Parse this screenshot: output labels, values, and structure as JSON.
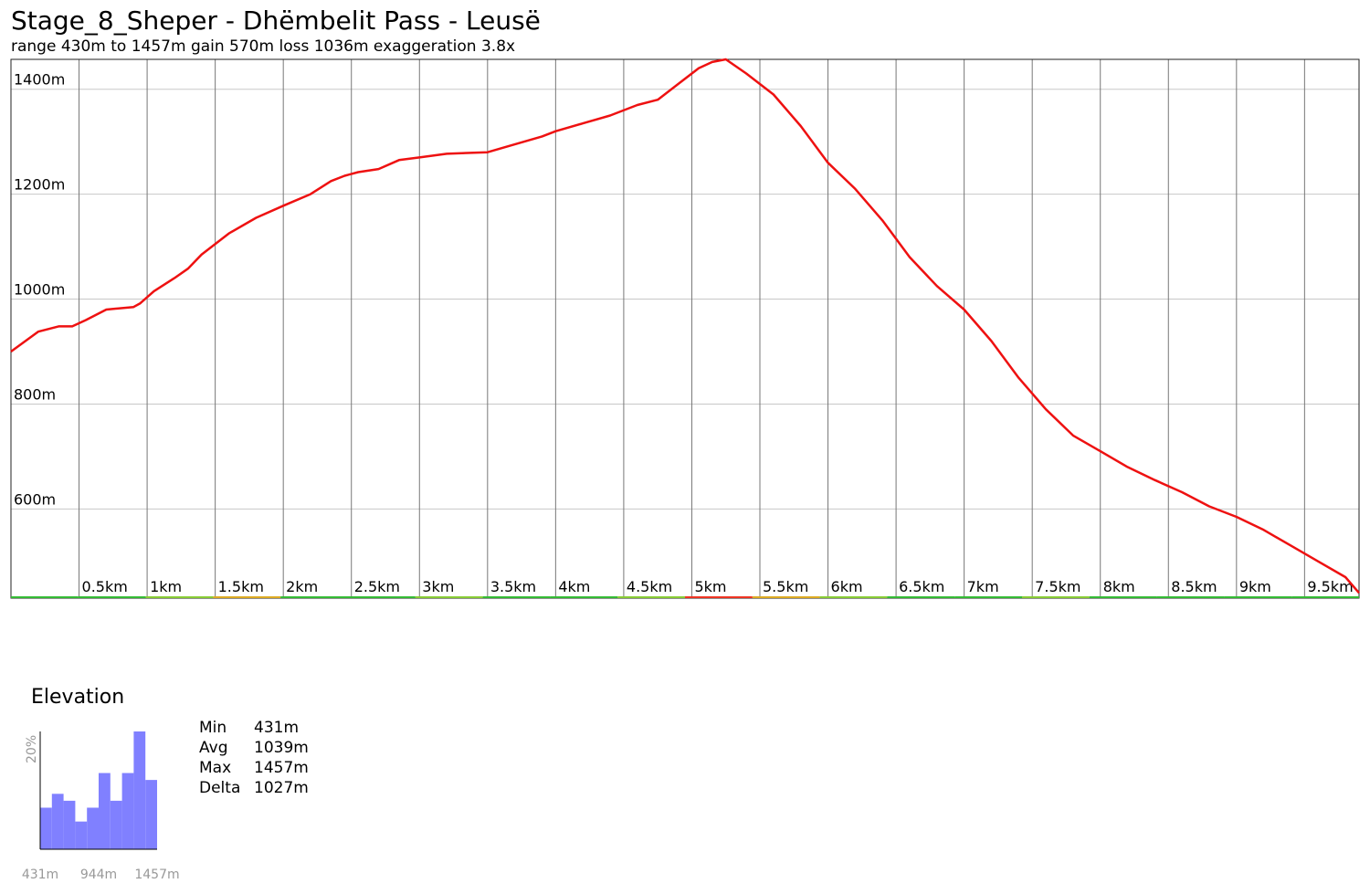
{
  "title": "Stage_8_Sheper - Dhëmbelit Pass - Leusë",
  "subtitle": "range 430m to 1457m  gain 570m  loss 1036m  exaggeration 3.8x",
  "colors": {
    "profile_line": "#ee1111",
    "grid": "#c8c8c8",
    "vgrid": "#777777",
    "frame": "#222222",
    "histogram": "#8080ff",
    "muted_text": "#999999"
  },
  "chart_data": [
    {
      "type": "line",
      "title": "Stage_8_Sheper - Dhëmbelit Pass - Leusë",
      "xlabel": "",
      "ylabel": "",
      "xlim": [
        0,
        9.9
      ],
      "ylim": [
        430,
        1457
      ],
      "y_ticks": [
        1400,
        1200,
        1000,
        800,
        600
      ],
      "y_tick_labels": [
        "1400m",
        "1200m",
        "1000m",
        "800m",
        "600m"
      ],
      "x_ticks": [
        0.5,
        1,
        1.5,
        2,
        2.5,
        3,
        3.5,
        4,
        4.5,
        5,
        5.5,
        6,
        6.5,
        7,
        7.5,
        8,
        8.5,
        9,
        9.5
      ],
      "x_tick_labels": [
        "0.5km",
        "1km",
        "1.5km",
        "2km",
        "2.5km",
        "3km",
        "3.5km",
        "4km",
        "4.5km",
        "5km",
        "5.5km",
        "6km",
        "6.5km",
        "7km",
        "7.5km",
        "8km",
        "8.5km",
        "9km",
        "9.5km"
      ],
      "grid": true,
      "legend": "none",
      "series": [
        {
          "x": [
            0,
            0.2,
            0.35,
            0.45,
            0.55,
            0.7,
            0.9,
            0.95,
            1.05,
            1.2,
            1.3,
            1.4,
            1.6,
            1.8,
            2.0,
            2.2,
            2.35,
            2.45,
            2.55,
            2.7,
            2.85,
            3.0,
            3.2,
            3.5,
            3.7,
            3.9,
            4.0,
            4.2,
            4.4,
            4.6,
            4.75,
            4.9,
            5.05,
            5.15,
            5.25,
            5.4,
            5.6,
            5.8,
            6.0,
            6.2,
            6.4,
            6.6,
            6.8,
            7.0,
            7.2,
            7.4,
            7.6,
            7.8,
            8.0,
            8.2,
            8.4,
            8.6,
            8.8,
            9.0,
            9.2,
            9.4,
            9.6,
            9.8,
            9.9
          ],
          "y": [
            900,
            938,
            948,
            948,
            960,
            980,
            985,
            992,
            1015,
            1040,
            1058,
            1085,
            1125,
            1155,
            1178,
            1200,
            1225,
            1235,
            1242,
            1248,
            1265,
            1270,
            1277,
            1280,
            1295,
            1310,
            1320,
            1335,
            1350,
            1370,
            1380,
            1410,
            1440,
            1452,
            1457,
            1430,
            1390,
            1330,
            1260,
            1210,
            1150,
            1080,
            1025,
            980,
            920,
            850,
            790,
            740,
            710,
            680,
            655,
            632,
            605,
            585,
            560,
            530,
            500,
            470,
            440
          ]
        }
      ]
    },
    {
      "type": "bar",
      "title": "Elevation",
      "ylabel": "20%",
      "x_tick_labels": [
        "431m",
        "944m",
        "1457m"
      ],
      "values": [
        6,
        8,
        7,
        4,
        6,
        11,
        7,
        11,
        17,
        10
      ]
    }
  ],
  "stats": [
    {
      "label": "Min",
      "value": "431m"
    },
    {
      "label": "Avg",
      "value": "1039m"
    },
    {
      "label": "Max",
      "value": "1457m"
    },
    {
      "label": "Delta",
      "value": "1027m"
    }
  ]
}
